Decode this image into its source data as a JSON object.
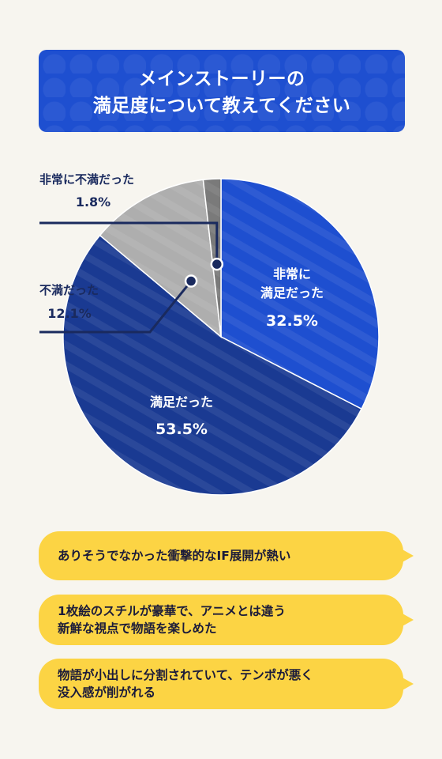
{
  "title": {
    "line1": "メインストーリーの",
    "line2": "満足度について教えてください"
  },
  "chart_data": {
    "type": "pie",
    "slices": [
      {
        "label_lines": [
          "非常に",
          "満足だった"
        ],
        "value": 32.5,
        "value_text": "32.5%",
        "color": "#1e4fd0"
      },
      {
        "label_lines": [
          "満足だった"
        ],
        "value": 53.5,
        "value_text": "53.5%",
        "color": "#1a3a92"
      },
      {
        "label_lines": [
          "不満だった"
        ],
        "value": 12.1,
        "value_text": "12.1%",
        "color": "#aeaeae"
      },
      {
        "label_lines": [
          "非常に不満だった"
        ],
        "value": 1.8,
        "value_text": "1.8%",
        "color": "#7a7a7a"
      }
    ]
  },
  "comments": [
    {
      "lines": [
        "ありそうでなかった衝撃的なIF展開が熱い"
      ]
    },
    {
      "lines": [
        "1枚絵のスチルが豪華で、アニメとは違う",
        "新鮮な視点で物語を楽しめた"
      ]
    },
    {
      "lines": [
        "物語が小出しに分割されていて、テンポが悪く",
        "没入感が削がれる"
      ]
    }
  ],
  "colors": {
    "title_bg": "#1e4fd0",
    "label_dark": "#1a2a5e",
    "bubble": "#fcd444",
    "background": "#f7f5ef"
  }
}
